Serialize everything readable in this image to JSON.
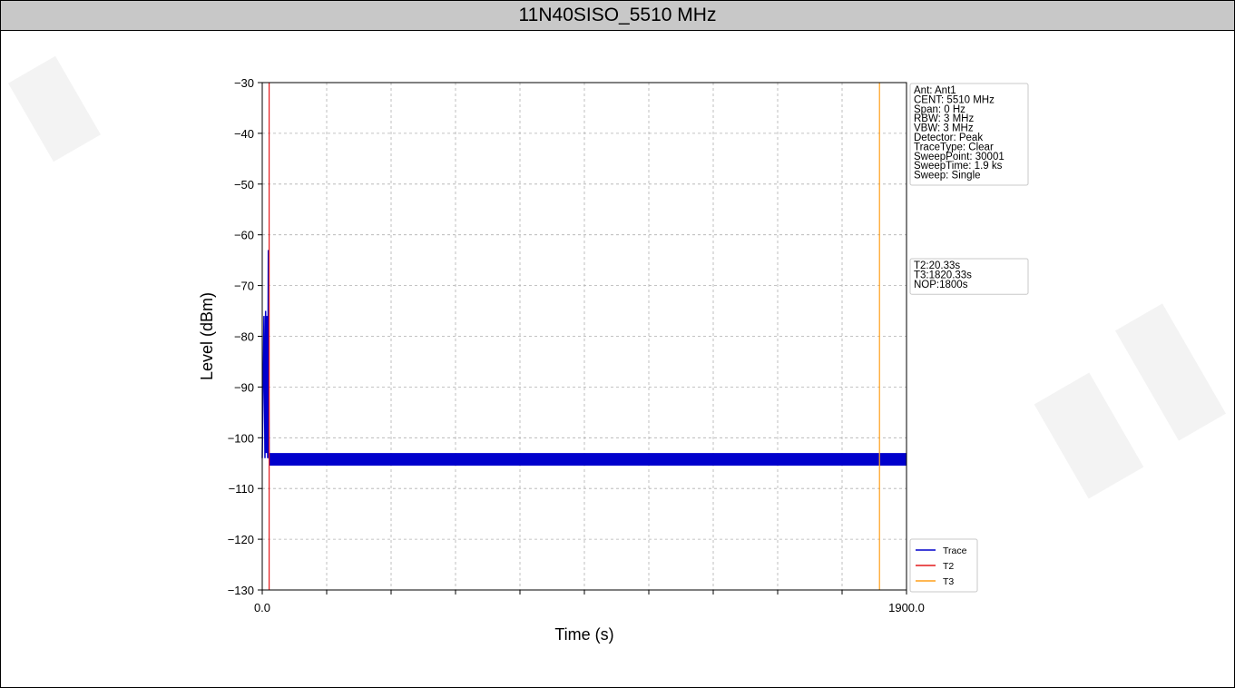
{
  "page_title": "11N40SISO_5510 MHz",
  "colors": {
    "trace": "#0000cc",
    "t2": "#e41a1c",
    "t3": "#ff9f1a",
    "grid": "#b0b0b0",
    "title_bar": "#c8c8c8"
  },
  "chart_data": {
    "type": "line",
    "title": "",
    "xlabel": "Time (s)",
    "ylabel": "Level (dBm)",
    "xlim": [
      0.0,
      1900.0
    ],
    "ylim": [
      -130,
      -30
    ],
    "x_tick_labels": [
      "0.0",
      "1900.0"
    ],
    "y_ticks": [
      -30,
      -40,
      -50,
      -60,
      -70,
      -80,
      -90,
      -100,
      -110,
      -120,
      -130
    ],
    "y_tick_labels": [
      "−30",
      "−40",
      "−50",
      "−60",
      "−70",
      "−80",
      "−90",
      "−100",
      "−110",
      "−120",
      "−130"
    ],
    "grid": true,
    "series": [
      {
        "name": "Trace",
        "x": [
          0,
          5,
          8,
          10,
          12,
          14,
          16,
          18,
          20,
          22,
          30,
          60,
          100,
          150,
          200,
          250,
          300,
          350,
          400,
          450,
          500,
          600,
          700,
          800,
          900,
          1000,
          1100,
          1200,
          1300,
          1400,
          1500,
          1600,
          1700,
          1800,
          1850,
          1900
        ],
        "y": [
          -104,
          -76,
          -104,
          -75,
          -103,
          -76,
          -104,
          -63,
          -104,
          -104,
          -104,
          -104,
          -104,
          -104,
          -104,
          -104,
          -104,
          -104,
          -104,
          -104,
          -104,
          -104,
          -104,
          -104,
          -104,
          -104,
          -104,
          -104,
          -104,
          -104,
          -104,
          -104,
          -104,
          -104,
          -104,
          -104
        ],
        "band_low": -105.5,
        "band_high": -103.0,
        "band_start": 20
      }
    ],
    "markers": [
      {
        "name": "T2",
        "x": 20.33
      },
      {
        "name": "T3",
        "x": 1820.33
      }
    ],
    "legend": {
      "placement": "lower-right",
      "entries": [
        "Trace",
        "T2",
        "T3"
      ]
    },
    "info_box": [
      "Ant: Ant1",
      "CENT: 5510 MHz",
      "Span: 0 Hz",
      "RBW: 3 MHz",
      "VBW: 3 MHz",
      "Detector: Peak",
      "TraceType: Clear",
      "SweepPoint: 30001",
      "SweepTime: 1.9 ks",
      "Sweep: Single"
    ],
    "timing_box": [
      "T2:20.33s",
      "T3:1820.33s",
      "NOP:1800s"
    ]
  }
}
